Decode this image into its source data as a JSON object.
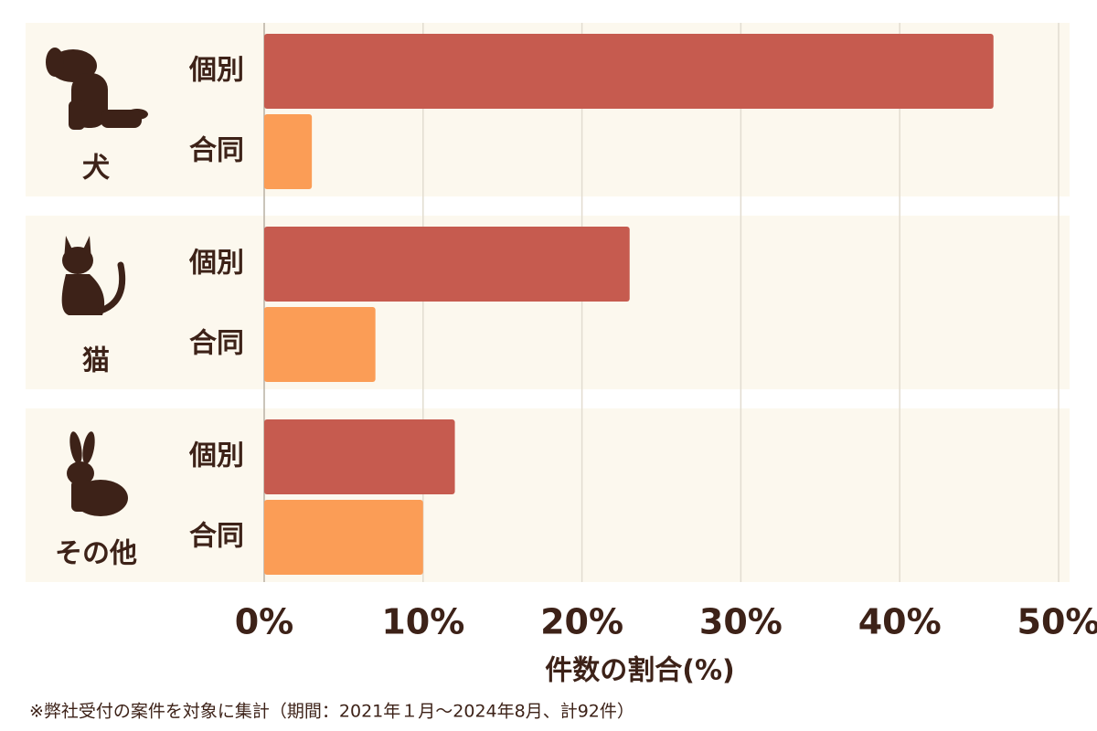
{
  "chart_data": {
    "type": "bar",
    "categories": [
      "犬",
      "猫",
      "その他"
    ],
    "series": [
      {
        "name": "個別",
        "color": "#c65b4f",
        "values": [
          45.9,
          23,
          12
        ]
      },
      {
        "name": "合同",
        "color": "#fb9d56",
        "values": [
          3,
          7,
          10
        ]
      }
    ],
    "xlim": [
      0,
      50
    ],
    "xticks": [
      {
        "value": 0,
        "label": "0%"
      },
      {
        "value": 10,
        "label": "10%"
      },
      {
        "value": 20,
        "label": "20%"
      },
      {
        "value": 30,
        "label": "30%"
      },
      {
        "value": 40,
        "label": "40%"
      },
      {
        "value": 50,
        "label": "50%"
      }
    ],
    "xlabel": "件数の割合(%)",
    "note": "※弊社受付の案件を対象に集計（期間：2021年１月～2024年8月、計92件）",
    "grid": true
  }
}
